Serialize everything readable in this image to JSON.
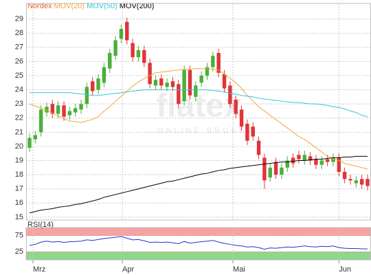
{
  "chart_data": [
    {
      "type": "candlestick",
      "title": "Nordex",
      "title_color": "#e8602c",
      "watermark": "flatex",
      "watermark_sub": "ONLINE BROKER",
      "open": [
        19.9,
        20.5,
        21.0,
        22.4,
        23.0,
        22.3,
        22.9,
        22.2,
        22.4,
        22.6,
        23.0,
        24.6,
        24.0,
        24.5,
        25.5,
        26.4,
        27.6,
        28.8,
        27.3,
        26.3,
        26.8,
        25.9,
        24.3,
        24.8,
        24.2,
        24.6,
        24.4,
        23.2,
        25.4,
        23.5,
        24.5,
        25.0,
        25.6,
        26.6,
        25.1,
        24.3,
        23.3,
        22.6,
        21.6,
        21.4,
        20.4,
        19.2,
        17.8,
        18.9,
        18.0,
        18.5,
        19.2,
        19.4,
        19.0,
        19.3,
        19.1,
        18.7,
        19.1,
        18.9,
        19.2,
        18.2,
        17.7,
        17.4,
        17.7,
        17.7
      ],
      "high": [
        20.9,
        21.1,
        22.9,
        23.1,
        23.3,
        23.2,
        23.2,
        22.8,
        23.0,
        23.3,
        24.5,
        24.9,
        25.1,
        25.9,
        26.9,
        27.8,
        28.6,
        29.1,
        27.6,
        27.1,
        27.1,
        26.2,
        25.0,
        25.1,
        24.8,
        24.9,
        24.7,
        25.7,
        25.7,
        24.6,
        25.3,
        25.9,
        26.7,
        26.9,
        25.4,
        24.6,
        23.6,
        22.9,
        21.9,
        21.7,
        20.7,
        19.5,
        18.8,
        19.2,
        18.8,
        19.3,
        19.5,
        19.7,
        19.7,
        19.6,
        19.4,
        19.3,
        19.4,
        19.5,
        19.5,
        18.5,
        18.0,
        17.9,
        18.0,
        18.0
      ],
      "low": [
        19.6,
        20.2,
        20.7,
        22.1,
        22.0,
        22.0,
        21.8,
        21.9,
        22.1,
        22.3,
        22.7,
        23.6,
        23.7,
        24.2,
        25.2,
        26.1,
        27.3,
        27.2,
        26.0,
        26.0,
        25.6,
        24.1,
        24.0,
        24.0,
        23.9,
        23.9,
        22.7,
        22.9,
        23.3,
        23.2,
        24.2,
        24.7,
        25.3,
        24.9,
        23.8,
        22.7,
        22.0,
        21.1,
        20.1,
        20.4,
        19.1,
        17.0,
        17.5,
        17.7,
        17.7,
        18.2,
        18.5,
        18.8,
        18.7,
        18.7,
        18.4,
        18.4,
        18.6,
        18.6,
        17.9,
        17.4,
        17.3,
        17.1,
        17.0,
        16.9
      ],
      "close": [
        20.6,
        20.8,
        22.6,
        22.8,
        22.3,
        22.9,
        22.1,
        22.5,
        22.7,
        23.0,
        24.2,
        23.9,
        24.8,
        25.6,
        26.6,
        27.5,
        28.3,
        27.5,
        26.3,
        26.8,
        25.9,
        24.4,
        24.7,
        24.3,
        24.5,
        24.2,
        23.0,
        25.4,
        23.6,
        24.3,
        25.0,
        25.6,
        26.4,
        25.2,
        24.1,
        23.0,
        22.3,
        21.4,
        20.4,
        20.7,
        19.4,
        17.6,
        18.5,
        18.0,
        18.5,
        19.0,
        18.8,
        19.1,
        19.4,
        19.0,
        18.7,
        19.0,
        18.9,
        19.2,
        18.2,
        17.7,
        17.6,
        17.6,
        17.3,
        17.2
      ],
      "up_color": "#4caf3a",
      "down_color": "#e0343a",
      "series": [
        {
          "name": "MOV(20)",
          "color": "#f0a830",
          "values": [
            23.0,
            22.85,
            22.7,
            22.55,
            22.35,
            22.15,
            21.95,
            21.8,
            21.75,
            21.7,
            21.8,
            21.9,
            22.1,
            22.5,
            22.8,
            23.2,
            23.55,
            23.9,
            24.25,
            24.55,
            24.8,
            25.0,
            25.2,
            25.25,
            25.3,
            25.35,
            25.4,
            25.45,
            25.45,
            25.5,
            25.5,
            25.5,
            25.45,
            25.4,
            25.1,
            24.8,
            24.5,
            24.1,
            23.6,
            23.2,
            22.8,
            22.5,
            22.2,
            21.9,
            21.6,
            21.3,
            21.0,
            20.7,
            20.5,
            20.2,
            19.9,
            19.6,
            19.3,
            19.1,
            19.0,
            18.8,
            18.7,
            18.6,
            18.5,
            18.4
          ]
        },
        {
          "name": "MOV(50)",
          "color": "#30c8dc",
          "values": [
            23.8,
            23.8,
            23.8,
            23.8,
            23.8,
            23.8,
            23.8,
            23.8,
            23.75,
            23.7,
            23.65,
            23.6,
            23.6,
            23.65,
            23.7,
            23.75,
            23.8,
            23.85,
            23.9,
            23.95,
            24.0,
            24.0,
            24.0,
            24.0,
            24.0,
            24.0,
            24.0,
            24.0,
            24.0,
            24.0,
            24.0,
            24.0,
            23.95,
            23.9,
            23.85,
            23.75,
            23.7,
            23.6,
            23.55,
            23.5,
            23.4,
            23.35,
            23.3,
            23.25,
            23.2,
            23.15,
            23.1,
            23.1,
            23.05,
            23.0,
            23.0,
            22.95,
            22.9,
            22.8,
            22.75,
            22.65,
            22.5,
            22.4,
            22.2,
            22.1
          ]
        },
        {
          "name": "MOV(200)",
          "color": "#000000",
          "values": [
            15.3,
            15.4,
            15.5,
            15.55,
            15.6,
            15.7,
            15.75,
            15.8,
            15.9,
            15.95,
            16.05,
            16.15,
            16.25,
            16.4,
            16.5,
            16.6,
            16.7,
            16.8,
            16.9,
            17.0,
            17.1,
            17.2,
            17.3,
            17.4,
            17.5,
            17.55,
            17.65,
            17.75,
            17.85,
            17.95,
            18.05,
            18.1,
            18.2,
            18.3,
            18.35,
            18.45,
            18.5,
            18.55,
            18.6,
            18.65,
            18.7,
            18.75,
            18.8,
            18.85,
            18.9,
            18.9,
            18.95,
            19.0,
            19.0,
            19.05,
            19.1,
            19.1,
            19.15,
            19.2,
            19.2,
            19.25,
            19.25,
            19.3,
            19.3,
            19.3
          ]
        }
      ],
      "xlim": [
        -0.6,
        59.6
      ],
      "xticks": [
        {
          "value": 0.6,
          "label": "Mrz"
        },
        {
          "value": 16.2,
          "label": "Apr"
        },
        {
          "value": 35.5,
          "label": "Mai"
        },
        {
          "value": 54,
          "label": "Jun"
        }
      ],
      "ylim": [
        14.8,
        30.1
      ],
      "yticks": [
        15,
        16,
        17,
        18,
        19,
        20,
        21,
        22,
        23,
        24,
        25,
        26,
        27,
        28,
        29
      ],
      "grid": true
    },
    {
      "type": "line",
      "title": "RSI(14)",
      "color": "#2233cc",
      "values": [
        45,
        48,
        55,
        58,
        55,
        57,
        54,
        56,
        57,
        58,
        62,
        60,
        63,
        66,
        68,
        70,
        72,
        67,
        62,
        63,
        59,
        54,
        55,
        54,
        55,
        53,
        50,
        57,
        52,
        54,
        56,
        58,
        60,
        55,
        51,
        48,
        45,
        43,
        40,
        41,
        38,
        33,
        37,
        36,
        38,
        40,
        39,
        41,
        43,
        41,
        40,
        42,
        41,
        43,
        38,
        36,
        35,
        35,
        34,
        34
      ],
      "bands": [
        {
          "from": 75,
          "to": 100,
          "color": "#f7a3a3"
        },
        {
          "from": 0,
          "to": 25,
          "color": "#8fd88a"
        }
      ],
      "xlim": [
        -0.6,
        59.6
      ],
      "ylim": [
        0,
        100
      ],
      "yticks": [
        25,
        75
      ],
      "grid": true
    }
  ]
}
